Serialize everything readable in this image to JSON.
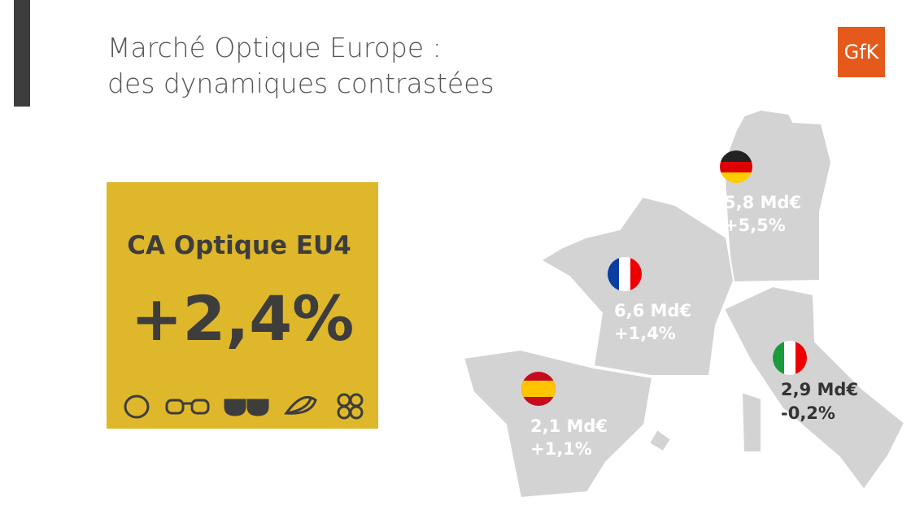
{
  "header": {
    "title_lines": [
      "Marché Optique Europe :",
      "des dynamiques contrastées"
    ],
    "logo": "GfK"
  },
  "kpi": {
    "label": "CA Optique EU4",
    "value": "+2,4%"
  },
  "map": {
    "regions": [
      {
        "value": "5,8 Md€",
        "growth": "+5,5%"
      },
      {
        "value": "6,6 Md€",
        "growth": "+1,4%"
      },
      {
        "value": "2,1 Md€",
        "growth": "+1,1%"
      },
      {
        "value": "2,9 Md€",
        "growth": "-0,2%"
      }
    ]
  }
}
